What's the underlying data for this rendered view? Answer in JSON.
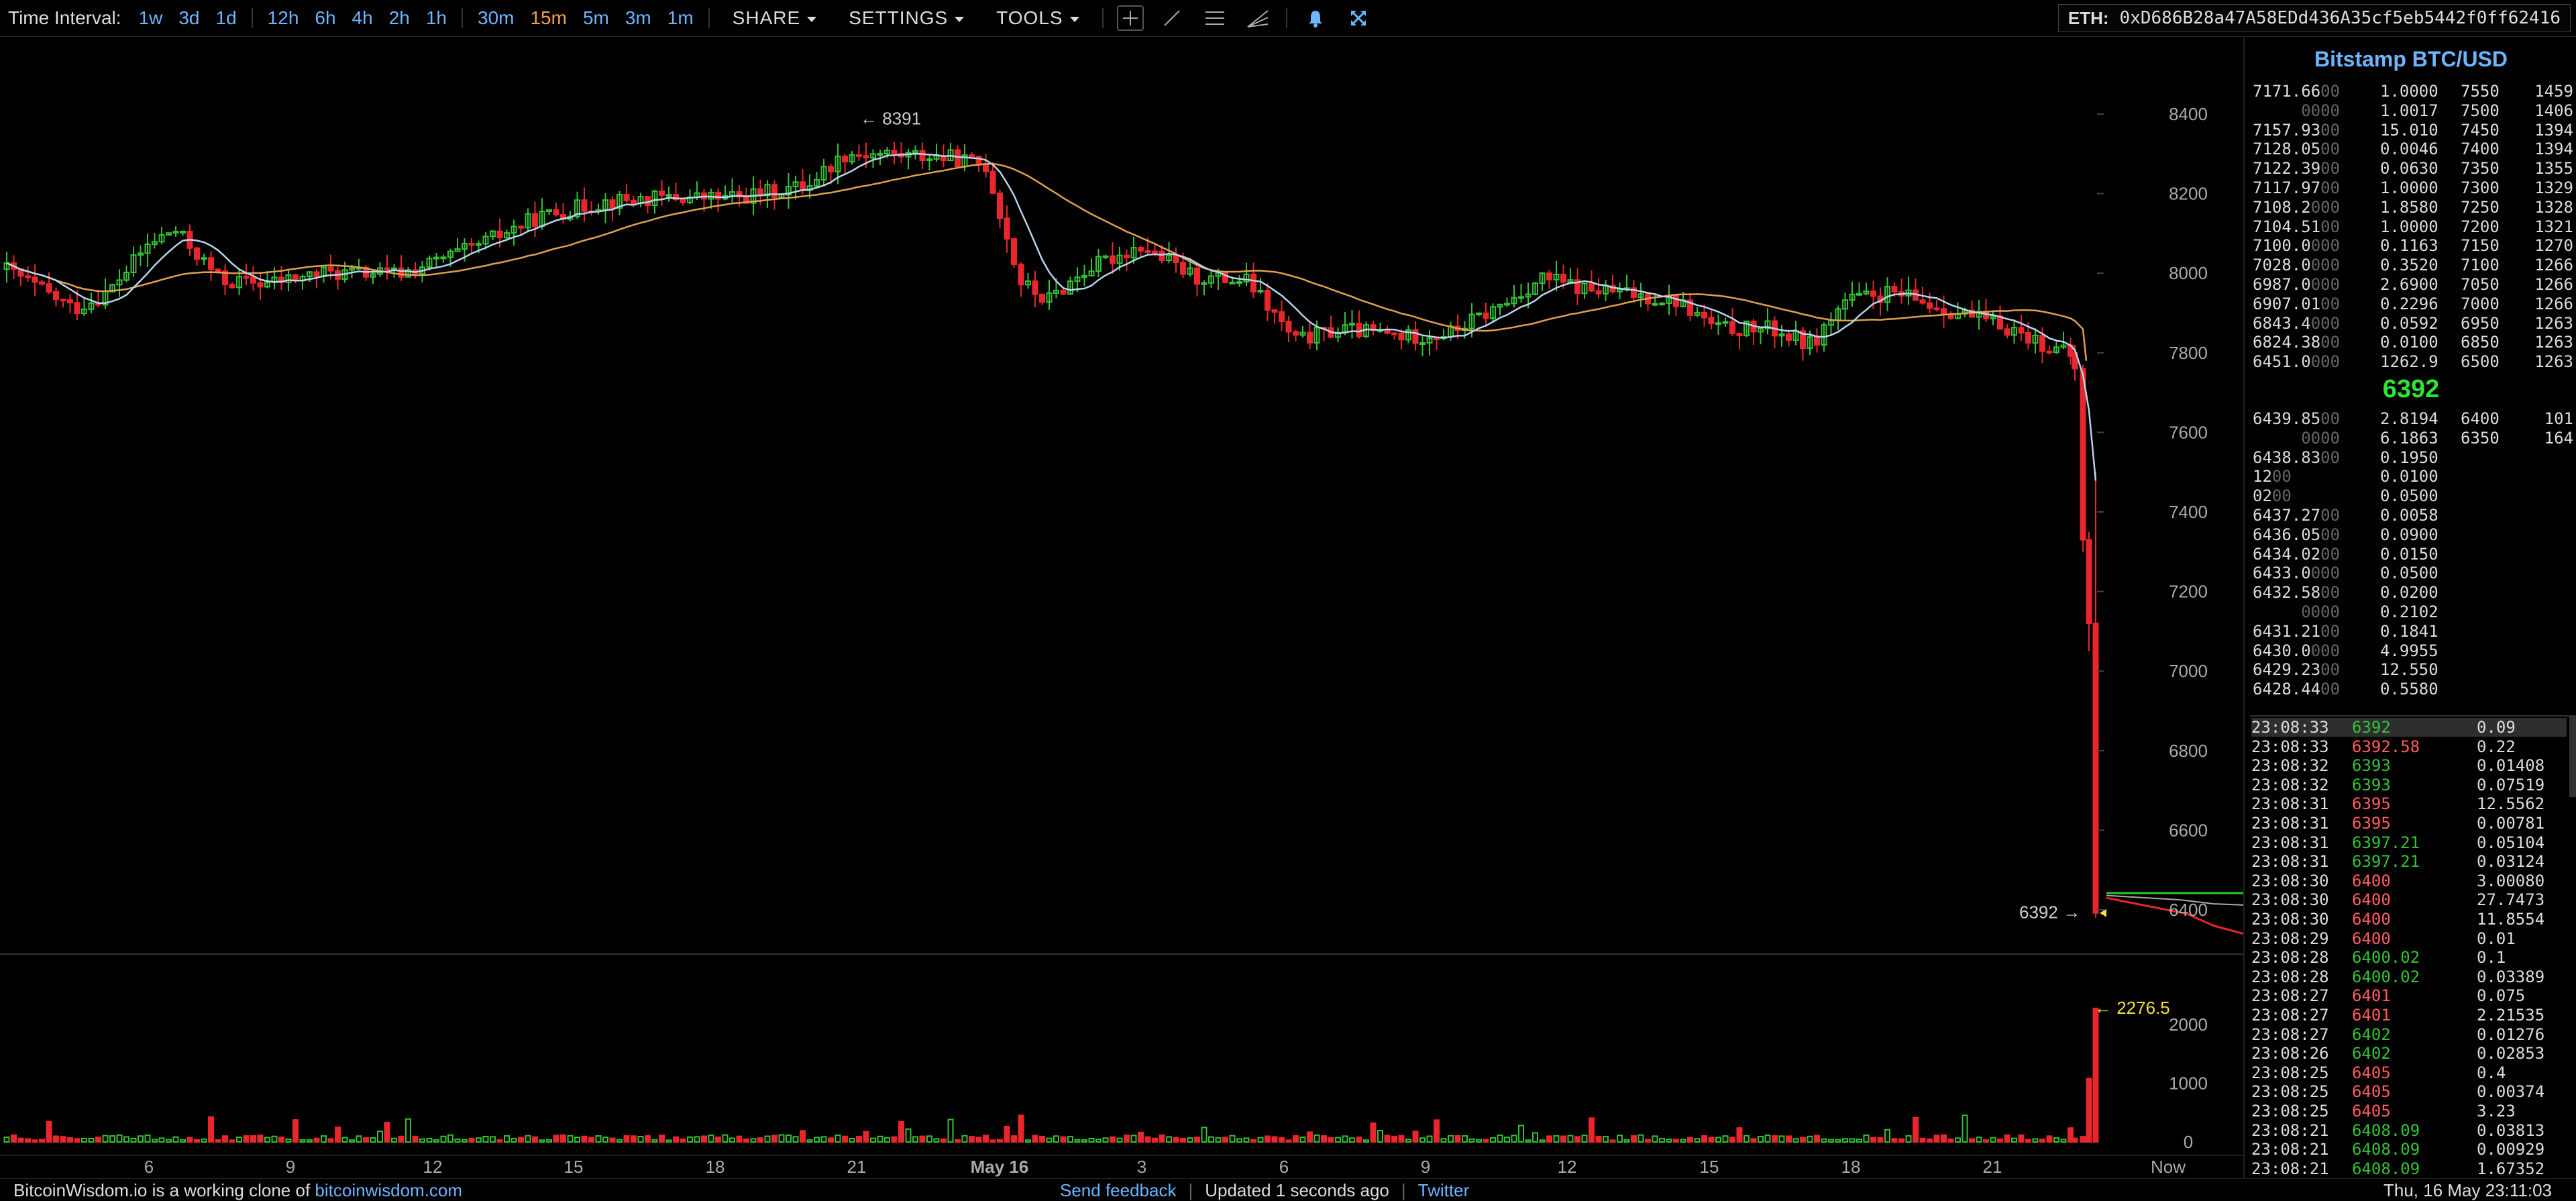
{
  "toolbar": {
    "interval_label": "Time Interval:",
    "intervals": [
      "1w",
      "3d",
      "1d",
      "12h",
      "6h",
      "4h",
      "2h",
      "1h",
      "30m",
      "15m",
      "5m",
      "3m",
      "1m"
    ],
    "active_interval": "15m",
    "share": "SHARE",
    "settings": "SETTINGS",
    "tools": "TOOLS",
    "tool_icons": [
      "crosshair-icon",
      "line-tool-icon",
      "horizontal-lines-icon",
      "fan-tool-icon",
      "bell-icon",
      "fullscreen-icon"
    ],
    "eth_label": "ETH:",
    "eth_address": "0xD686B28a47A58EDd436A35cf5eb5442f0ff62416"
  },
  "chart": {
    "y_ticks": [
      "8400",
      "8200",
      "8000",
      "7800",
      "7600",
      "7400",
      "7200",
      "7000",
      "6800",
      "6600",
      "6400"
    ],
    "vol_ticks": [
      "2000",
      "1000",
      "0"
    ],
    "x_ticks": [
      "6",
      "9",
      "12",
      "15",
      "18",
      "21",
      "May 16",
      "3",
      "6",
      "9",
      "12",
      "15",
      "18",
      "21",
      "Now"
    ],
    "high_marker": "← 8391",
    "price_marker": "6392 →",
    "vol_marker": "← 2276.5",
    "colors": {
      "up": "#34c234",
      "down": "#e8262b",
      "ma_fast": "#b8d4ee",
      "ma_slow": "#e0a050",
      "depth_bid": "#2ecc2e",
      "depth_ask": "#e8262b"
    }
  },
  "chart_data": {
    "type": "candlestick",
    "title": "",
    "ylim": [
      6320,
      8520
    ],
    "vol_ylim": [
      0,
      2300
    ],
    "candles_note": "",
    "high": 8391,
    "last": 6392,
    "last_volume": 2276.5
  },
  "side": {
    "title": "Bitstamp BTC/USD",
    "asks": [
      {
        "p": "7171.66",
        "pd": "00",
        "a": "1.0000",
        "g": "7550",
        "s": "1459"
      },
      {
        "p": "",
        "pd": "0000",
        "a": "1.0017",
        "g": "7500",
        "s": "1406"
      },
      {
        "p": "7157.93",
        "pd": "00",
        "a": "15.010",
        "g": "7450",
        "s": "1394"
      },
      {
        "p": "7128.05",
        "pd": "00",
        "a": "0.0046",
        "g": "7400",
        "s": "1394"
      },
      {
        "p": "7122.39",
        "pd": "00",
        "a": "0.0630",
        "g": "7350",
        "s": "1355"
      },
      {
        "p": "7117.97",
        "pd": "00",
        "a": "1.0000",
        "g": "7300",
        "s": "1329"
      },
      {
        "p": "7108.2",
        "pd": "000",
        "a": "1.8580",
        "g": "7250",
        "s": "1328"
      },
      {
        "p": "7104.51",
        "pd": "00",
        "a": "1.0000",
        "g": "7200",
        "s": "1321"
      },
      {
        "p": "7100.0",
        "pd": "000",
        "a": "0.1163",
        "g": "7150",
        "s": "1270"
      },
      {
        "p": "7028.0",
        "pd": "000",
        "a": "0.3520",
        "g": "7100",
        "s": "1266"
      },
      {
        "p": "6987.0",
        "pd": "000",
        "a": "2.6900",
        "g": "7050",
        "s": "1266"
      },
      {
        "p": "6907.01",
        "pd": "00",
        "a": "0.2296",
        "g": "7000",
        "s": "1266"
      },
      {
        "p": "6843.4",
        "pd": "000",
        "a": "0.0592",
        "g": "6950",
        "s": "1263"
      },
      {
        "p": "6824.38",
        "pd": "00",
        "a": "0.0100",
        "g": "6850",
        "s": "1263"
      },
      {
        "p": "6451.0",
        "pd": "000",
        "a": "1262.9",
        "g": "6500",
        "s": "1263"
      }
    ],
    "last_price": "6392",
    "bids": [
      {
        "p": "6439.85",
        "pd": "00",
        "a": "2.8194",
        "g": "6400",
        "s": "101"
      },
      {
        "p": "",
        "pd": "0000",
        "a": "6.1863",
        "g": "6350",
        "s": "164"
      },
      {
        "p": "6438.83",
        "pd": "00",
        "a": "0.1950",
        "g": "",
        "s": ""
      },
      {
        "p": "12",
        "pd": "00",
        "a": "0.0100",
        "g": "",
        "s": ""
      },
      {
        "p": "02",
        "pd": "00",
        "a": "0.0500",
        "g": "",
        "s": ""
      },
      {
        "p": "6437.27",
        "pd": "00",
        "a": "0.0058",
        "g": "",
        "s": ""
      },
      {
        "p": "6436.05",
        "pd": "00",
        "a": "0.0900",
        "g": "",
        "s": ""
      },
      {
        "p": "6434.02",
        "pd": "00",
        "a": "0.0150",
        "g": "",
        "s": ""
      },
      {
        "p": "6433.0",
        "pd": "000",
        "a": "0.0500",
        "g": "",
        "s": ""
      },
      {
        "p": "6432.58",
        "pd": "00",
        "a": "0.0200",
        "g": "",
        "s": ""
      },
      {
        "p": "",
        "pd": "0000",
        "a": "0.2102",
        "g": "",
        "s": ""
      },
      {
        "p": "6431.21",
        "pd": "00",
        "a": "0.1841",
        "g": "",
        "s": ""
      },
      {
        "p": "6430.0",
        "pd": "000",
        "a": "4.9955",
        "g": "",
        "s": ""
      },
      {
        "p": "6429.23",
        "pd": "00",
        "a": "12.550",
        "g": "",
        "s": ""
      },
      {
        "p": "6428.44",
        "pd": "00",
        "a": "0.5580",
        "g": "",
        "s": ""
      }
    ],
    "trades": [
      {
        "t": "23:08:33",
        "p": "6392",
        "d": "up",
        "a": "0.09"
      },
      {
        "t": "23:08:33",
        "p": "6392.58",
        "d": "dn",
        "a": "0.22"
      },
      {
        "t": "23:08:32",
        "p": "6393",
        "d": "up",
        "a": "0.01408"
      },
      {
        "t": "23:08:32",
        "p": "6393",
        "d": "up",
        "a": "0.07519"
      },
      {
        "t": "23:08:31",
        "p": "6395",
        "d": "dn",
        "a": "12.5562"
      },
      {
        "t": "23:08:31",
        "p": "6395",
        "d": "dn",
        "a": "0.00781"
      },
      {
        "t": "23:08:31",
        "p": "6397.21",
        "d": "up",
        "a": "0.05104"
      },
      {
        "t": "23:08:31",
        "p": "6397.21",
        "d": "up",
        "a": "0.03124"
      },
      {
        "t": "23:08:30",
        "p": "6400",
        "d": "dn",
        "a": "3.00080"
      },
      {
        "t": "23:08:30",
        "p": "6400",
        "d": "dn",
        "a": "27.7473"
      },
      {
        "t": "23:08:30",
        "p": "6400",
        "d": "dn",
        "a": "11.8554"
      },
      {
        "t": "23:08:29",
        "p": "6400",
        "d": "dn",
        "a": "0.01"
      },
      {
        "t": "23:08:28",
        "p": "6400.02",
        "d": "up",
        "a": "0.1"
      },
      {
        "t": "23:08:28",
        "p": "6400.02",
        "d": "up",
        "a": "0.03389"
      },
      {
        "t": "23:08:27",
        "p": "6401",
        "d": "dn",
        "a": "0.075"
      },
      {
        "t": "23:08:27",
        "p": "6401",
        "d": "dn",
        "a": "2.21535"
      },
      {
        "t": "23:08:27",
        "p": "6402",
        "d": "up",
        "a": "0.01276"
      },
      {
        "t": "23:08:26",
        "p": "6402",
        "d": "up",
        "a": "0.02853"
      },
      {
        "t": "23:08:25",
        "p": "6405",
        "d": "dn",
        "a": "0.4"
      },
      {
        "t": "23:08:25",
        "p": "6405",
        "d": "dn",
        "a": "0.00374"
      },
      {
        "t": "23:08:25",
        "p": "6405",
        "d": "dn",
        "a": "3.23"
      },
      {
        "t": "23:08:21",
        "p": "6408.09",
        "d": "up",
        "a": "0.03813"
      },
      {
        "t": "23:08:21",
        "p": "6408.09",
        "d": "up",
        "a": "0.00929"
      },
      {
        "t": "23:08:21",
        "p": "6408.09",
        "d": "up",
        "a": "1.67352"
      }
    ]
  },
  "footer": {
    "left_text": "BitcoinWisdom.io is a working clone of ",
    "left_link": "bitcoinwisdom.com",
    "feedback": "Send feedback",
    "updated": "Updated 1 seconds ago",
    "twitter": "Twitter",
    "datetime": "Thu, 16 May 23:11:03"
  }
}
